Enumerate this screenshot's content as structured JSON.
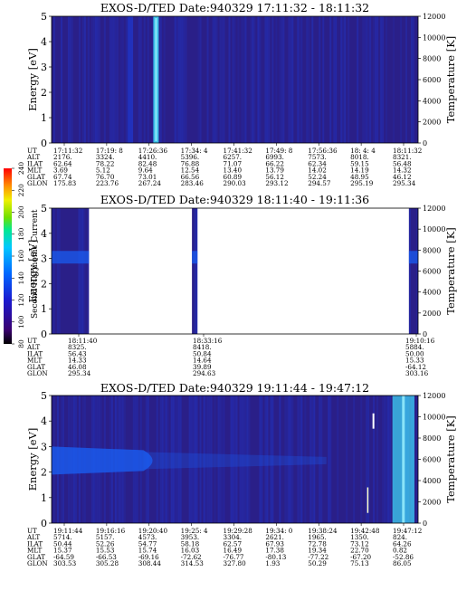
{
  "chart_data": [
    {
      "type": "heatmap",
      "title": "EXOS-D/TED  Date:940329  17:11:32 - 18:11:32",
      "ylabel": "Energy [eV]",
      "y2label": "Temperature [K]",
      "ylim": [
        0,
        5
      ],
      "y2lim": [
        0,
        12000
      ],
      "yticks": [
        "0",
        "1",
        "2",
        "3",
        "4",
        "5"
      ],
      "y2ticks": [
        "0",
        "2000",
        "4000",
        "6000",
        "8000",
        "10000",
        "12000"
      ],
      "colorbar_ticks": [
        "80",
        "100",
        "120",
        "140",
        "160",
        "180",
        "200",
        "220",
        "240"
      ],
      "colorbar_label": "Second Harmonic Current",
      "ephemeris": {
        "labels": [
          "UT",
          "ALT",
          "ILAT",
          "MLT",
          "GLAT",
          "GLON"
        ],
        "rows": [
          [
            "17:11:32",
            "17:19: 8",
            "17:26:36",
            "17:34: 4",
            "17:41:32",
            "17:49: 8",
            "17:56:36",
            "18: 4: 4",
            "18:11:32"
          ],
          [
            "2176.",
            "3324.",
            "4410.",
            "5396.",
            "6257.",
            "6993.",
            "7573.",
            "8018.",
            "8321."
          ],
          [
            "62.64",
            "78.22",
            "82.48",
            "76.88",
            "71.07",
            "66.22",
            "62.34",
            "59.15",
            "56.48"
          ],
          [
            "3.69",
            "5.12",
            "9.64",
            "12.54",
            "13.40",
            "13.79",
            "14.02",
            "14.19",
            "14.32"
          ],
          [
            "67.74",
            "76.70",
            "73.01",
            "66.56",
            "60.89",
            "56.12",
            "52.24",
            "48.95",
            "46.12"
          ],
          [
            "175.83",
            "223.76",
            "267.24",
            "283.46",
            "290.03",
            "293.12",
            "294.57",
            "295.19",
            "295.34"
          ]
        ]
      },
      "features": {
        "background": "low",
        "spikes": [
          {
            "x": 0.285,
            "level": "high"
          },
          {
            "x": 0.215,
            "level": "medium"
          }
        ],
        "band": {
          "emin": 1.8,
          "emax": 3.2,
          "xstart": 0.0,
          "xend": 0.0
        },
        "right_spike": null,
        "coverage": [
          [
            0,
            1
          ]
        ]
      }
    },
    {
      "type": "heatmap",
      "title": "EXOS-D/TED  Date:940329  18:11:40 - 19:11:36",
      "ylabel": "Energy [eV]",
      "y2label": "Temperature [K]",
      "ylim": [
        0,
        5
      ],
      "y2lim": [
        0,
        12000
      ],
      "yticks": [
        "0",
        "1",
        "2",
        "3",
        "4",
        "5"
      ],
      "y2ticks": [
        "0",
        "2000",
        "4000",
        "6000",
        "8000",
        "10000",
        "12000"
      ],
      "ephemeris": {
        "labels": [
          "UT",
          "ALT",
          "ILAT",
          "MLT",
          "GLAT",
          "GLON"
        ],
        "rows": [
          [
            "18:11:40",
            "18:33:16",
            "19:10:16"
          ],
          [
            "8325.",
            "8418.",
            "5884."
          ],
          [
            "56.43",
            "50.84",
            "50.00"
          ],
          [
            "14.33",
            "14.64",
            "15.33"
          ],
          [
            "46.08",
            "39.89",
            "-64.12"
          ],
          [
            "295.34",
            "294.63",
            "303.16"
          ]
        ]
      },
      "features": {
        "background": "none",
        "coverage": [
          [
            0,
            0.102
          ],
          [
            0.383,
            0.398
          ],
          [
            0.975,
            1
          ]
        ],
        "band": {
          "emin": 2.8,
          "emax": 3.3
        },
        "spikes": [],
        "right_spike": null
      }
    },
    {
      "type": "heatmap",
      "title": "EXOS-D/TED  Date:940329  19:11:44 - 19:47:12",
      "ylabel": "Energy [eV]",
      "y2label": "Temperature [K]",
      "ylim": [
        0,
        5
      ],
      "y2lim": [
        0,
        12000
      ],
      "yticks": [
        "0",
        "1",
        "2",
        "3",
        "4",
        "5"
      ],
      "y2ticks": [
        "0",
        "2000",
        "4000",
        "6000",
        "8000",
        "10000",
        "12000"
      ],
      "ephemeris": {
        "labels": [
          "UT",
          "ALT",
          "ILAT",
          "MLT",
          "GLAT",
          "GLON"
        ],
        "rows": [
          [
            "19:11:44",
            "19:16:16",
            "19:20:40",
            "19:25: 4",
            "19:29:28",
            "19:34: 0",
            "19:38:24",
            "19:42:48",
            "19:47:12"
          ],
          [
            "5714.",
            "5157.",
            "4573.",
            "3953.",
            "3304.",
            "2621.",
            "1965.",
            "1350.",
            "824."
          ],
          [
            "50.44",
            "52.26",
            "54.77",
            "58.18",
            "62.57",
            "67.93",
            "72.78",
            "73.12",
            "64.26"
          ],
          [
            "15.37",
            "15.53",
            "15.74",
            "16.03",
            "16.49",
            "17.38",
            "19.34",
            "22.70",
            "0.82"
          ],
          [
            "-64.59",
            "-66.53",
            "-69.16",
            "-72.62",
            "-76.77",
            "-80.13",
            "-77.22",
            "-67.20",
            "-52.86"
          ],
          [
            "303.53",
            "305.28",
            "308.44",
            "314.53",
            "327.80",
            "1.93",
            "50.29",
            "75.13",
            "86.05"
          ]
        ]
      },
      "features": {
        "background": "low",
        "spikes": [],
        "band": {
          "emin": 1.9,
          "emax": 3.0,
          "xstart": 0.0,
          "xend": 0.3
        },
        "right_spike": {
          "x0": 0.93,
          "x1": 0.99
        },
        "coverage": [
          [
            0,
            1
          ]
        ]
      }
    }
  ],
  "colors": {
    "bg_dark": "#2a1f88",
    "bg_mid": "#2035c8",
    "band": "#1a5cf0",
    "spike": "#3fd0f0",
    "spike_hot": "#9ff4ff",
    "colorbar": [
      "#000000",
      "#3a0070",
      "#1a1ad0",
      "#0066ff",
      "#00c8ff",
      "#00e890",
      "#6fe000",
      "#f0f000",
      "#ff9000",
      "#ff0000"
    ]
  }
}
